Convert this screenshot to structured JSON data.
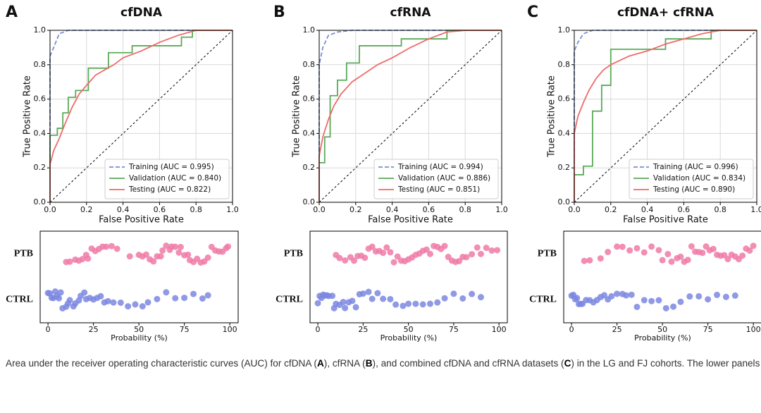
{
  "panel_labels": [
    "A",
    "B",
    "C"
  ],
  "caption": [
    "Area under the receiver operating characteristic curves (AUC) for cfDNA (",
    "A",
    "), cfRNA (",
    "B",
    "), and combined cfDNA and cfRNA datasets (",
    "C",
    ") in the LG and FJ cohorts. The lower panels display the probability distributions generated by model, comparing each sample with its respective control. Each point on the ROC curves represents a single sample."
  ],
  "chart_data": [
    {
      "type": "line",
      "title": "cfDNA",
      "xlabel": "False Positive Rate",
      "ylabel": "True Positive Rate",
      "xlim": [
        0,
        1
      ],
      "ylim": [
        0,
        1
      ],
      "xticks": [
        {
          "value": 0,
          "label": "0.0"
        },
        0.2,
        0.4,
        0.6,
        0.8,
        {
          "value": 1,
          "label": "1.0"
        }
      ],
      "yticks": [
        {
          "value": 0,
          "label": "0.0"
        },
        0.2,
        0.4,
        0.6,
        0.8,
        {
          "value": 1,
          "label": "1.0"
        }
      ],
      "grid": true,
      "legend": "lower right",
      "series": [
        {
          "name": "Training (AUC = 0.995)",
          "color": "#7b8fd4",
          "dash": true,
          "x": [
            0,
            0,
            0.02,
            0.05,
            0.1,
            0.2,
            1
          ],
          "values": [
            0,
            0.85,
            0.9,
            0.98,
            1,
            1,
            1
          ]
        },
        {
          "name": "Validation (AUC = 0.840)",
          "color": "#5aaa5a",
          "x": [
            0,
            0,
            0.04,
            0.04,
            0.07,
            0.07,
            0.1,
            0.1,
            0.14,
            0.14,
            0.21,
            0.21,
            0.32,
            0.32,
            0.45,
            0.45,
            0.72,
            0.72,
            0.78,
            0.78,
            1
          ],
          "values": [
            0,
            0.39,
            0.39,
            0.43,
            0.43,
            0.52,
            0.52,
            0.61,
            0.61,
            0.65,
            0.65,
            0.78,
            0.78,
            0.87,
            0.87,
            0.91,
            0.91,
            0.96,
            0.96,
            1,
            1
          ]
        },
        {
          "name": "Testing (AUC = 0.822)",
          "color": "#ef6a6a",
          "x": [
            0,
            0,
            0.02,
            0.05,
            0.08,
            0.12,
            0.16,
            0.2,
            0.25,
            0.3,
            0.35,
            0.4,
            0.5,
            0.6,
            0.7,
            0.8,
            1
          ],
          "values": [
            0,
            0.22,
            0.3,
            0.37,
            0.45,
            0.55,
            0.63,
            0.68,
            0.74,
            0.77,
            0.8,
            0.84,
            0.88,
            0.93,
            0.97,
            1,
            1
          ]
        }
      ]
    },
    {
      "type": "line",
      "title": "cfRNA",
      "xlabel": "False Positive Rate",
      "ylabel": "True Positive Rate",
      "xlim": [
        0,
        1
      ],
      "ylim": [
        0,
        1
      ],
      "xticks": [
        {
          "value": 0,
          "label": "0.0"
        },
        0.2,
        0.4,
        0.6,
        0.8,
        {
          "value": 1,
          "label": "1.0"
        }
      ],
      "yticks": [
        {
          "value": 0,
          "label": "0.0"
        },
        0.2,
        0.4,
        0.6,
        0.8,
        {
          "value": 1,
          "label": "1.0"
        }
      ],
      "grid": true,
      "legend": "lower right",
      "series": [
        {
          "name": "Training (AUC = 0.994)",
          "color": "#7b8fd4",
          "dash": true,
          "x": [
            0,
            0,
            0.02,
            0.05,
            0.1,
            0.18,
            1
          ],
          "values": [
            0,
            0.8,
            0.9,
            0.97,
            0.99,
            1,
            1
          ]
        },
        {
          "name": "Validation (AUC = 0.886)",
          "color": "#5aaa5a",
          "x": [
            0,
            0,
            0.03,
            0.03,
            0.06,
            0.06,
            0.1,
            0.1,
            0.15,
            0.15,
            0.22,
            0.22,
            0.45,
            0.45,
            0.7,
            0.7,
            1
          ],
          "values": [
            0,
            0.23,
            0.23,
            0.38,
            0.38,
            0.62,
            0.62,
            0.71,
            0.71,
            0.81,
            0.81,
            0.91,
            0.91,
            0.95,
            0.95,
            1,
            1
          ]
        },
        {
          "name": "Testing (AUC = 0.851)",
          "color": "#ef6a6a",
          "x": [
            0,
            0,
            0.02,
            0.05,
            0.08,
            0.12,
            0.18,
            0.25,
            0.32,
            0.4,
            0.5,
            0.6,
            0.7,
            0.8,
            1
          ],
          "values": [
            0,
            0.27,
            0.38,
            0.48,
            0.56,
            0.63,
            0.7,
            0.75,
            0.8,
            0.84,
            0.9,
            0.95,
            0.99,
            1,
            1
          ]
        }
      ]
    },
    {
      "type": "line",
      "title": "cfDNA+ cfRNA",
      "xlabel": "False Positive Rate",
      "ylabel": "True Positive Rate",
      "xlim": [
        0,
        1
      ],
      "ylim": [
        0,
        1
      ],
      "xticks": [
        {
          "value": 0,
          "label": "0.0"
        },
        0.2,
        0.4,
        0.6,
        0.8,
        {
          "value": 1,
          "label": "1.0"
        }
      ],
      "yticks": [
        {
          "value": 0,
          "label": "0.0"
        },
        0.2,
        0.4,
        0.6,
        0.8,
        {
          "value": 1,
          "label": "1.0"
        }
      ],
      "grid": true,
      "legend": "lower right",
      "series": [
        {
          "name": "Training (AUC = 0.996)",
          "color": "#7b8fd4",
          "dash": true,
          "x": [
            0,
            0,
            0.02,
            0.05,
            0.1,
            1
          ],
          "values": [
            0,
            0.88,
            0.93,
            0.98,
            1,
            1
          ]
        },
        {
          "name": "Validation (AUC = 0.834)",
          "color": "#5aaa5a",
          "x": [
            0,
            0,
            0.05,
            0.05,
            0.1,
            0.1,
            0.15,
            0.15,
            0.2,
            0.2,
            0.5,
            0.5,
            0.75,
            0.75,
            1
          ],
          "values": [
            0,
            0.16,
            0.16,
            0.21,
            0.21,
            0.53,
            0.53,
            0.68,
            0.68,
            0.89,
            0.89,
            0.95,
            0.95,
            1,
            1
          ]
        },
        {
          "name": "Testing (AUC = 0.890)",
          "color": "#ef6a6a",
          "x": [
            0,
            0,
            0.02,
            0.05,
            0.08,
            0.12,
            0.16,
            0.2,
            0.3,
            0.4,
            0.5,
            0.6,
            0.7,
            0.8,
            1
          ],
          "values": [
            0,
            0.4,
            0.5,
            0.58,
            0.65,
            0.72,
            0.77,
            0.8,
            0.85,
            0.88,
            0.92,
            0.95,
            0.98,
            1,
            1
          ]
        }
      ]
    },
    {
      "type": "strip",
      "xlabel": "Probability (%)",
      "xlim": [
        -4.3,
        104.6
      ],
      "xticks": [
        0,
        25,
        50,
        75,
        100
      ],
      "categories": [
        "PTB",
        "CTRL"
      ],
      "series": [
        {
          "color": "#f07aa6",
          "values": [
            10,
            12,
            15,
            17,
            19,
            21,
            22,
            24,
            26,
            28,
            30,
            32,
            35,
            38,
            45,
            50,
            52,
            54,
            56,
            58,
            60,
            62,
            63,
            65,
            67,
            68,
            70,
            72,
            73,
            75,
            77,
            78,
            80,
            82,
            84,
            86,
            88,
            90,
            92,
            94,
            96,
            98,
            99
          ]
        },
        {
          "color": "#7b87e0",
          "values": [
            0,
            1,
            2,
            3,
            4,
            5,
            6,
            7,
            8,
            10,
            11,
            12,
            14,
            15,
            17,
            18,
            20,
            21,
            23,
            25,
            27,
            29,
            31,
            33,
            36,
            40,
            44,
            48,
            52,
            55,
            60,
            65,
            70,
            75,
            80,
            85,
            88
          ]
        }
      ]
    },
    {
      "type": "strip",
      "xlabel": "Probability (%)",
      "xlim": [
        -4.3,
        104.6
      ],
      "xticks": [
        0,
        25,
        50,
        75,
        100
      ],
      "categories": [
        "PTB",
        "CTRL"
      ],
      "series": [
        {
          "color": "#f07aa6",
          "values": [
            10,
            12,
            15,
            18,
            20,
            22,
            24,
            26,
            28,
            30,
            32,
            34,
            36,
            38,
            40,
            42,
            44,
            46,
            48,
            50,
            52,
            54,
            56,
            58,
            60,
            62,
            64,
            66,
            68,
            70,
            72,
            74,
            76,
            78,
            80,
            82,
            85,
            88,
            90,
            93,
            96,
            99
          ]
        },
        {
          "color": "#7b87e0",
          "values": [
            0,
            1,
            2,
            3,
            4,
            5,
            6,
            8,
            9,
            10,
            12,
            14,
            15,
            17,
            19,
            21,
            23,
            25,
            28,
            30,
            33,
            36,
            40,
            43,
            47,
            50,
            54,
            58,
            62,
            66,
            70,
            75,
            80,
            85,
            90
          ]
        }
      ]
    },
    {
      "type": "strip",
      "xlabel": "Probability (%)",
      "xlim": [
        -4.3,
        104.6
      ],
      "xticks": [
        0,
        25,
        50,
        75,
        100
      ],
      "categories": [
        "PTB",
        "CTRL"
      ],
      "series": [
        {
          "color": "#f07aa6",
          "values": [
            7,
            10,
            16,
            20,
            25,
            28,
            32,
            36,
            40,
            44,
            48,
            50,
            53,
            55,
            58,
            60,
            62,
            64,
            66,
            68,
            70,
            72,
            74,
            76,
            78,
            80,
            82,
            84,
            86,
            88,
            90,
            92,
            94,
            96,
            98,
            100
          ]
        },
        {
          "color": "#7b87e0",
          "values": [
            0,
            1,
            2,
            3,
            4,
            5,
            6,
            8,
            10,
            12,
            14,
            16,
            18,
            20,
            22,
            25,
            28,
            30,
            33,
            36,
            40,
            44,
            48,
            52,
            56,
            60,
            65,
            70,
            75,
            80,
            85,
            90
          ]
        }
      ]
    }
  ]
}
